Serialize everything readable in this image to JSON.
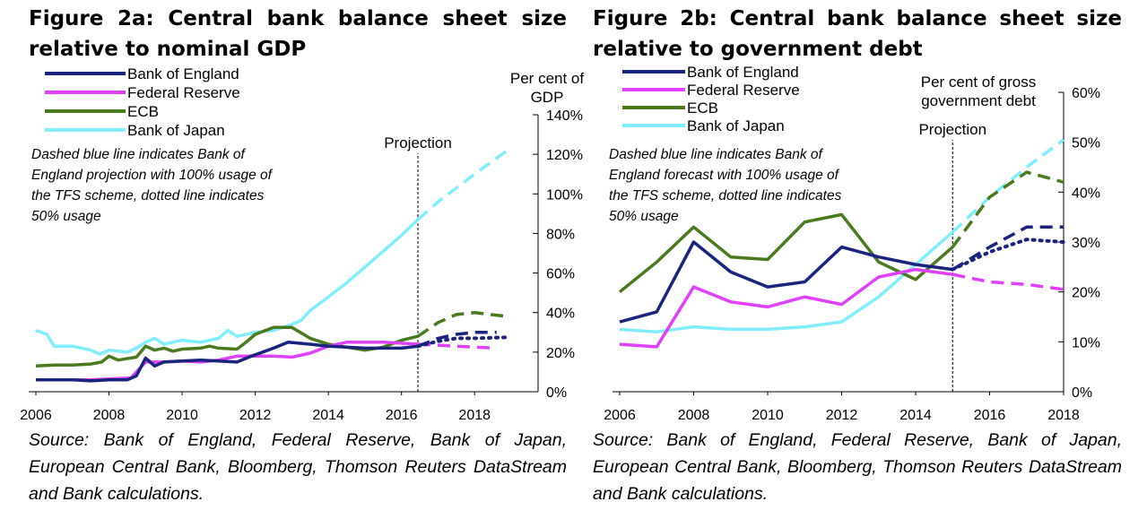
{
  "figures": [
    {
      "title": "Figure 2a: Central bank balance sheet size relative to nominal GDP",
      "source": "Source: Bank of England, Federal Reserve, Bank of Japan, European Central Bank, Bloomberg, Thomson Reuters DataStream and Bank calculations."
    },
    {
      "title": "Figure 2b: Central bank balance sheet size relative to government debt",
      "source": "Source: Bank of England, Federal Reserve, Bank of Japan, European Central Bank, Bloomberg, Thomson Reuters DataStream and Bank calculations."
    }
  ],
  "chart_data": [
    {
      "type": "line",
      "title": "Figure 2a: Central bank balance sheet size relative to nominal GDP",
      "ylabel": "Per cent of GDP",
      "xlim": [
        2006,
        2019
      ],
      "ylim": [
        0,
        140
      ],
      "x_ticks": [
        2006,
        2008,
        2010,
        2012,
        2014,
        2016,
        2018
      ],
      "x_tick_labels": [
        "2006",
        "2008",
        "2010",
        "2012",
        "2014",
        "2016",
        "2018"
      ],
      "y_ticks": [
        0,
        20,
        40,
        60,
        80,
        100,
        120,
        140
      ],
      "y_tick_labels": [
        "0%",
        "20%",
        "40%",
        "60%",
        "80%",
        "100%",
        "120%",
        "140%"
      ],
      "y_axis_side": "right",
      "grid": false,
      "legend_position": "top-left",
      "projection_line": {
        "x": 2016.45,
        "label": "Projection"
      },
      "annotation": "Dashed blue line indicates Bank of England projection with 100% usage of the TFS scheme, dotted line indicates 50% usage",
      "series": [
        {
          "name": "Bank of England",
          "color": "#1a237e",
          "style": "solid",
          "points": [
            [
              2006.0,
              6
            ],
            [
              2006.5,
              6
            ],
            [
              2007.0,
              6
            ],
            [
              2007.5,
              5.5
            ],
            [
              2008.0,
              6
            ],
            [
              2008.5,
              6
            ],
            [
              2008.75,
              8
            ],
            [
              2009.0,
              17
            ],
            [
              2009.25,
              13
            ],
            [
              2009.5,
              15
            ],
            [
              2010.0,
              15.5
            ],
            [
              2010.5,
              16
            ],
            [
              2011.0,
              15.5
            ],
            [
              2011.5,
              15
            ],
            [
              2011.9,
              18
            ],
            [
              2012.5,
              22
            ],
            [
              2012.9,
              25
            ],
            [
              2013.5,
              24
            ],
            [
              2014.0,
              23
            ],
            [
              2014.5,
              22.5
            ],
            [
              2015.0,
              22
            ],
            [
              2015.5,
              22
            ],
            [
              2016.0,
              22
            ],
            [
              2016.45,
              23
            ]
          ]
        },
        {
          "name": "Bank of England",
          "color": "#1a237e",
          "style": "dashed",
          "points": [
            [
              2016.45,
              23
            ],
            [
              2017.0,
              27
            ],
            [
              2017.5,
              29
            ],
            [
              2018.0,
              30
            ],
            [
              2018.6,
              30
            ]
          ]
        },
        {
          "name": "Bank of England",
          "color": "#1a237e",
          "style": "dotted",
          "points": [
            [
              2016.45,
              23
            ],
            [
              2017.0,
              25.5
            ],
            [
              2017.5,
              27
            ],
            [
              2018.0,
              27
            ],
            [
              2018.9,
              27.5
            ]
          ]
        },
        {
          "name": "Federal Reserve",
          "color": "#e040fb",
          "style": "solid",
          "points": [
            [
              2006.0,
              6
            ],
            [
              2006.5,
              6
            ],
            [
              2007.0,
              6
            ],
            [
              2007.5,
              6
            ],
            [
              2008.0,
              6.5
            ],
            [
              2008.6,
              7
            ],
            [
              2009.0,
              15
            ],
            [
              2009.5,
              15
            ],
            [
              2010.0,
              15.5
            ],
            [
              2010.5,
              15
            ],
            [
              2011.0,
              16
            ],
            [
              2011.5,
              18
            ],
            [
              2012.0,
              18
            ],
            [
              2012.5,
              18
            ],
            [
              2013.0,
              17.5
            ],
            [
              2013.5,
              19.5
            ],
            [
              2014.0,
              23
            ],
            [
              2014.5,
              25
            ],
            [
              2015.0,
              25
            ],
            [
              2015.5,
              25
            ],
            [
              2016.0,
              24.5
            ],
            [
              2016.45,
              24
            ]
          ]
        },
        {
          "name": "Federal Reserve",
          "color": "#e040fb",
          "style": "dashed",
          "points": [
            [
              2016.45,
              24
            ],
            [
              2017.0,
              23.5
            ],
            [
              2017.5,
              23
            ],
            [
              2018.0,
              22.5
            ],
            [
              2018.6,
              22
            ]
          ]
        },
        {
          "name": "ECB",
          "color": "#4a7a1e",
          "style": "solid",
          "points": [
            [
              2006.0,
              13
            ],
            [
              2006.5,
              13.5
            ],
            [
              2007.0,
              13.5
            ],
            [
              2007.5,
              14
            ],
            [
              2007.8,
              15
            ],
            [
              2008.0,
              18
            ],
            [
              2008.25,
              16
            ],
            [
              2008.75,
              17.5
            ],
            [
              2009.0,
              23
            ],
            [
              2009.25,
              21
            ],
            [
              2009.5,
              22
            ],
            [
              2009.75,
              20.5
            ],
            [
              2010.0,
              21.5
            ],
            [
              2010.5,
              22
            ],
            [
              2010.75,
              23
            ],
            [
              2011.0,
              22
            ],
            [
              2011.5,
              21.5
            ],
            [
              2011.75,
              25
            ],
            [
              2012.0,
              29
            ],
            [
              2012.5,
              32.5
            ],
            [
              2013.0,
              32.5
            ],
            [
              2013.5,
              27
            ],
            [
              2014.0,
              24
            ],
            [
              2014.5,
              22.5
            ],
            [
              2015.0,
              21
            ],
            [
              2015.5,
              22.5
            ],
            [
              2016.0,
              26
            ],
            [
              2016.45,
              28
            ]
          ]
        },
        {
          "name": "ECB",
          "color": "#4a7a1e",
          "style": "dashed",
          "points": [
            [
              2016.45,
              28
            ],
            [
              2017.0,
              35
            ],
            [
              2017.5,
              39
            ],
            [
              2018.0,
              40
            ],
            [
              2018.9,
              38
            ]
          ]
        },
        {
          "name": "Bank of Japan",
          "color": "#80eeff",
          "style": "solid",
          "points": [
            [
              2006.0,
              31
            ],
            [
              2006.3,
              29
            ],
            [
              2006.5,
              23
            ],
            [
              2007.0,
              23
            ],
            [
              2007.5,
              21
            ],
            [
              2007.75,
              19
            ],
            [
              2008.0,
              21
            ],
            [
              2008.5,
              20
            ],
            [
              2008.75,
              22
            ],
            [
              2009.0,
              25
            ],
            [
              2009.25,
              27
            ],
            [
              2009.5,
              24
            ],
            [
              2010.0,
              26
            ],
            [
              2010.5,
              25
            ],
            [
              2011.0,
              27
            ],
            [
              2011.25,
              31
            ],
            [
              2011.5,
              28
            ],
            [
              2012.0,
              30
            ],
            [
              2012.5,
              31
            ],
            [
              2013.0,
              34
            ],
            [
              2013.25,
              36
            ],
            [
              2013.5,
              41
            ],
            [
              2014.0,
              48
            ],
            [
              2014.5,
              55
            ],
            [
              2015.0,
              63
            ],
            [
              2015.5,
              71
            ],
            [
              2016.0,
              79
            ],
            [
              2016.45,
              87
            ]
          ]
        },
        {
          "name": "Bank of Japan",
          "color": "#80eeff",
          "style": "dashed",
          "points": [
            [
              2016.45,
              87
            ],
            [
              2017.0,
              96
            ],
            [
              2017.5,
              103
            ],
            [
              2018.0,
              110
            ],
            [
              2018.9,
              122
            ]
          ]
        }
      ]
    },
    {
      "type": "line",
      "title": "Figure 2b: Central bank balance sheet size relative to government debt",
      "ylabel": "Per cent of gross government debt",
      "xlim": [
        2006,
        2018
      ],
      "ylim": [
        0,
        60
      ],
      "x_ticks": [
        2006,
        2008,
        2010,
        2012,
        2014,
        2016,
        2018
      ],
      "x_tick_labels": [
        "2006",
        "2008",
        "2010",
        "2012",
        "2014",
        "2016",
        "2018"
      ],
      "y_ticks": [
        0,
        10,
        20,
        30,
        40,
        50,
        60
      ],
      "y_tick_labels": [
        "0%",
        "10%",
        "20%",
        "30%",
        "40%",
        "50%",
        "60%"
      ],
      "y_axis_side": "right",
      "grid": false,
      "legend_position": "top-left",
      "projection_line": {
        "x": 2015.0,
        "label": "Projection"
      },
      "annotation": "Dashed blue line indicates Bank of England forecast with 100% usage of the TFS scheme, dotted line indicates 50% usage",
      "series": [
        {
          "name": "Bank of England",
          "color": "#1a237e",
          "style": "solid",
          "points": [
            [
              2006,
              14
            ],
            [
              2007,
              16
            ],
            [
              2008,
              30
            ],
            [
              2009,
              24
            ],
            [
              2010,
              21
            ],
            [
              2011,
              22
            ],
            [
              2012,
              29
            ],
            [
              2013,
              27
            ],
            [
              2014,
              25.5
            ],
            [
              2015,
              24.5
            ]
          ]
        },
        {
          "name": "Bank of England",
          "color": "#1a237e",
          "style": "dashed",
          "points": [
            [
              2015,
              24.5
            ],
            [
              2016,
              29
            ],
            [
              2017,
              33
            ],
            [
              2018,
              33
            ]
          ]
        },
        {
          "name": "Bank of England",
          "color": "#1a237e",
          "style": "dotted",
          "points": [
            [
              2015,
              24.5
            ],
            [
              2016,
              28
            ],
            [
              2017,
              30.5
            ],
            [
              2018,
              30
            ]
          ]
        },
        {
          "name": "Federal Reserve",
          "color": "#e040fb",
          "style": "solid",
          "points": [
            [
              2006,
              9.5
            ],
            [
              2007,
              9
            ],
            [
              2008,
              21
            ],
            [
              2009,
              18
            ],
            [
              2010,
              17
            ],
            [
              2011,
              19
            ],
            [
              2012,
              17.5
            ],
            [
              2013,
              23
            ],
            [
              2014,
              24.5
            ],
            [
              2015,
              23.5
            ]
          ]
        },
        {
          "name": "Federal Reserve",
          "color": "#e040fb",
          "style": "dashed",
          "points": [
            [
              2015,
              23.5
            ],
            [
              2016,
              22
            ],
            [
              2017,
              21.5
            ],
            [
              2018,
              20.5
            ]
          ]
        },
        {
          "name": "ECB",
          "color": "#4a7a1e",
          "style": "solid",
          "points": [
            [
              2006,
              20
            ],
            [
              2007,
              26
            ],
            [
              2008,
              33
            ],
            [
              2009,
              27
            ],
            [
              2010,
              26.5
            ],
            [
              2011,
              34
            ],
            [
              2012,
              35.5
            ],
            [
              2013,
              26
            ],
            [
              2014,
              22.5
            ],
            [
              2015,
              29
            ]
          ]
        },
        {
          "name": "ECB",
          "color": "#4a7a1e",
          "style": "dashed",
          "points": [
            [
              2015,
              29
            ],
            [
              2016,
              39
            ],
            [
              2017,
              44
            ],
            [
              2018,
              42
            ]
          ]
        },
        {
          "name": "Bank of Japan",
          "color": "#80eeff",
          "style": "solid",
          "points": [
            [
              2006,
              12.5
            ],
            [
              2007,
              12
            ],
            [
              2008,
              13
            ],
            [
              2009,
              12.5
            ],
            [
              2010,
              12.5
            ],
            [
              2011,
              13
            ],
            [
              2012,
              14
            ],
            [
              2013,
              19
            ],
            [
              2014,
              25.5
            ],
            [
              2015,
              32
            ]
          ]
        },
        {
          "name": "Bank of Japan",
          "color": "#80eeff",
          "style": "dashed",
          "points": [
            [
              2015,
              32
            ],
            [
              2016,
              39
            ],
            [
              2017,
              45
            ],
            [
              2018,
              50.5
            ]
          ]
        }
      ]
    }
  ]
}
